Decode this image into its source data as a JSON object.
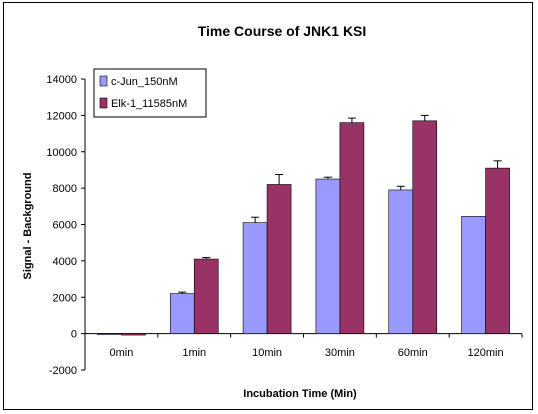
{
  "chart_data": {
    "type": "bar",
    "title": "Time Course of JNK1 KSI",
    "xlabel": "Incubation Time (Min)",
    "ylabel": "Signal - Background",
    "categories": [
      "0min",
      "1min",
      "10min",
      "30min",
      "60min",
      "120min"
    ],
    "ylim": [
      -2000,
      14000
    ],
    "yticks": [
      "14000",
      "12000",
      "10000",
      "8000",
      "6000",
      "4000",
      "2000",
      "0",
      "-2000"
    ],
    "ytick_values": [
      14000,
      12000,
      10000,
      8000,
      6000,
      4000,
      2000,
      0,
      -2000
    ],
    "grid": false,
    "legend_position": "top-left",
    "series": [
      {
        "name": "c-Jun_150nM",
        "color": "#9999FF",
        "values": [
          -50,
          2200,
          6100,
          8500,
          7900,
          6450
        ],
        "errors": [
          0,
          80,
          300,
          100,
          200,
          0
        ]
      },
      {
        "name": "Elk-1_11585nM",
        "color": "#993366",
        "values": [
          -80,
          4100,
          8200,
          11600,
          11700,
          9100
        ],
        "errors": [
          0,
          80,
          550,
          250,
          300,
          400
        ]
      }
    ]
  }
}
